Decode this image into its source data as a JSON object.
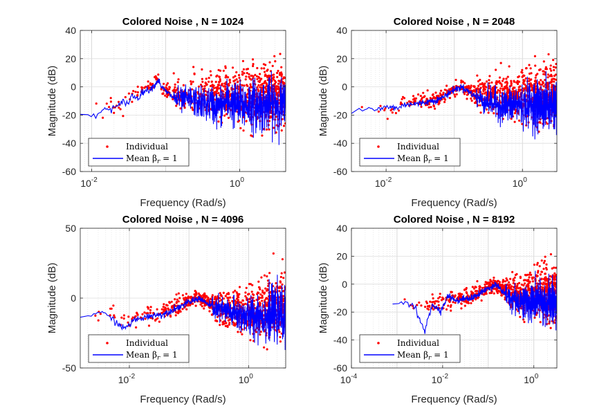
{
  "figure": {
    "background": "#ffffff"
  },
  "colors": {
    "individual": "#ff0000",
    "mean": "#0000ff",
    "grid": "#dcdcdc",
    "axis": "#262626"
  },
  "chart_data": [
    {
      "type": "scatter",
      "title": "Colored Noise , N = 1024",
      "xlabel": "Frequency (Rad/s)",
      "ylabel": "Magnitude (dB)",
      "xscale": "log",
      "xlim": [
        0.007,
        4.2
      ],
      "ylim": [
        -60,
        40
      ],
      "yticks": [
        -60,
        -40,
        -20,
        0,
        20,
        40
      ],
      "xticks": [
        {
          "mant": "10",
          "exp": "-2",
          "v": 0.01
        },
        {
          "mant": "10",
          "exp": "0",
          "v": 1
        }
      ],
      "grid": true,
      "legend": {
        "location": "bottom-left",
        "entries": [
          "Individual",
          "Mean βr = 1"
        ]
      },
      "peak_x": 0.08,
      "peak_y": 5,
      "series": [
        {
          "name": "Individual",
          "marker": "dot",
          "color": "#ff0000",
          "x": [
            0.007,
            0.0115,
            0.0153,
            0.0192,
            0.023,
            0.027,
            0.031,
            0.035,
            0.042,
            0.05,
            0.06,
            0.07,
            0.08,
            0.09,
            0.1,
            0.13,
            0.17,
            0.22,
            0.3,
            0.4,
            0.5,
            0.7,
            1.0,
            1.4,
            2.0,
            3.0,
            4.0
          ],
          "y": [
            -20,
            -20,
            -15,
            -14,
            -12,
            -10,
            -8,
            -6,
            -4,
            -2,
            0,
            3,
            5,
            0,
            -2,
            -6,
            -8,
            -6,
            -6,
            -6,
            -5,
            -6,
            -6,
            -6,
            -6,
            -6,
            -5
          ]
        },
        {
          "name": "Mean βr = 1",
          "marker": "line",
          "color": "#0000ff",
          "x": [
            0.007,
            0.0115,
            0.0153,
            0.0192,
            0.023,
            0.027,
            0.031,
            0.035,
            0.042,
            0.05,
            0.06,
            0.07,
            0.08,
            0.09,
            0.1,
            0.13,
            0.17,
            0.22,
            0.3,
            0.4,
            0.5,
            0.7,
            1.0,
            1.4,
            2.0,
            3.0,
            4.0
          ],
          "y": [
            -20,
            -20,
            -16,
            -15,
            -14,
            -10,
            -12,
            -6,
            -8,
            -3,
            -2,
            1,
            5,
            -1,
            -3,
            -8,
            -10,
            -9,
            -12,
            -12,
            -15,
            -10,
            -14,
            -12,
            -14,
            -12,
            -14
          ]
        }
      ]
    },
    {
      "type": "scatter",
      "title": "Colored Noise , N = 2048",
      "xlabel": "Frequency (Rad/s)",
      "ylabel": "Magnitude (dB)",
      "xscale": "log",
      "xlim": [
        0.0031,
        3.2
      ],
      "ylim": [
        -60,
        40
      ],
      "yticks": [
        -60,
        -40,
        -20,
        0,
        20,
        40
      ],
      "xticks": [
        {
          "mant": "10",
          "exp": "-2",
          "v": 0.01
        },
        {
          "mant": "10",
          "exp": "0",
          "v": 1
        }
      ],
      "grid": true,
      "legend": {
        "location": "bottom-left",
        "entries": [
          "Individual",
          "Mean βr = 1"
        ]
      },
      "peak_x": 0.13,
      "peak_y": 0,
      "series": [
        {
          "name": "Individual",
          "marker": "dot",
          "color": "#ff0000",
          "x": [
            0.0031,
            0.005,
            0.007,
            0.01,
            0.015,
            0.02,
            0.03,
            0.045,
            0.06,
            0.08,
            0.1,
            0.13,
            0.17,
            0.22,
            0.3,
            0.4,
            0.6,
            0.8,
            1.0,
            1.5,
            2.0,
            3.0
          ],
          "y": [
            -18,
            -16,
            -14,
            -15,
            -14,
            -12,
            -10,
            -10,
            -8,
            -4,
            -1,
            0,
            -3,
            -6,
            -6,
            -6,
            -6,
            -6,
            -6,
            -6,
            -6,
            -6
          ]
        },
        {
          "name": "Mean βr = 1",
          "marker": "line",
          "color": "#0000ff",
          "x": [
            0.0031,
            0.005,
            0.007,
            0.01,
            0.015,
            0.02,
            0.03,
            0.045,
            0.06,
            0.08,
            0.1,
            0.13,
            0.17,
            0.22,
            0.3,
            0.4,
            0.6,
            0.8,
            1.0,
            1.5,
            2.0,
            3.0
          ],
          "y": [
            -19,
            -15,
            -17,
            -14,
            -15,
            -12,
            -12,
            -10,
            -9,
            -5,
            -2,
            0,
            -4,
            -8,
            -10,
            -12,
            -14,
            -12,
            -14,
            -12,
            -14,
            -12
          ]
        }
      ]
    },
    {
      "type": "scatter",
      "title": "Colored Noise , N = 4096",
      "xlabel": "Frequency (Rad/s)",
      "ylabel": "Magnitude (dB)",
      "xscale": "log",
      "xlim": [
        0.0015,
        4.2
      ],
      "ylim": [
        -50,
        50
      ],
      "yticks": [
        -50,
        0,
        50
      ],
      "xticks": [
        {
          "mant": "10",
          "exp": "-2",
          "v": 0.01
        },
        {
          "mant": "10",
          "exp": "0",
          "v": 1
        }
      ],
      "grid": true,
      "legend": {
        "location": "bottom-left",
        "entries": [
          "Individual",
          "Mean βr = 1"
        ]
      },
      "peak_x": 0.15,
      "peak_y": 0,
      "series": [
        {
          "name": "Individual",
          "marker": "dot",
          "color": "#ff0000",
          "x": [
            0.0015,
            0.003,
            0.005,
            0.008,
            0.012,
            0.018,
            0.025,
            0.035,
            0.05,
            0.07,
            0.1,
            0.15,
            0.2,
            0.3,
            0.45,
            0.7,
            1.0,
            1.5,
            2.0,
            3.0,
            4.0
          ],
          "y": [
            -12,
            -10,
            -12,
            -16,
            -15,
            -12,
            -12,
            -10,
            -8,
            -5,
            -2,
            0,
            -3,
            -6,
            -8,
            -8,
            -8,
            -8,
            -7,
            -6,
            -5
          ]
        },
        {
          "name": "Mean βr = 1",
          "marker": "line",
          "color": "#0000ff",
          "x": [
            0.0015,
            0.003,
            0.005,
            0.008,
            0.012,
            0.018,
            0.025,
            0.035,
            0.05,
            0.07,
            0.1,
            0.15,
            0.2,
            0.3,
            0.45,
            0.7,
            1.0,
            1.5,
            2.0,
            3.0,
            4.0
          ],
          "y": [
            -14,
            -10,
            -14,
            -22,
            -16,
            -14,
            -12,
            -12,
            -9,
            -6,
            -3,
            0,
            -4,
            -8,
            -10,
            -12,
            -14,
            -12,
            -13,
            -12,
            -12
          ]
        }
      ]
    },
    {
      "type": "scatter",
      "title": "Colored Noise , N = 8192",
      "xlabel": "Frequency (Rad/s)",
      "ylabel": "Magnitude (dB)",
      "xscale": "log",
      "xlim": [
        0.0001,
        3.2
      ],
      "ylim": [
        -60,
        40
      ],
      "yticks": [
        -60,
        -40,
        -20,
        0,
        20,
        40
      ],
      "xticks": [
        {
          "mant": "10",
          "exp": "-4",
          "v": 0.0001
        },
        {
          "mant": "10",
          "exp": "-2",
          "v": 0.01
        },
        {
          "mant": "10",
          "exp": "0",
          "v": 1
        }
      ],
      "grid": true,
      "legend": {
        "location": "bottom-left",
        "entries": [
          "Individual",
          "Mean βr = 1"
        ]
      },
      "peak_x": 0.15,
      "peak_y": 0,
      "series": [
        {
          "name": "Individual",
          "marker": "dot",
          "color": "#ff0000",
          "x": [
            0.0008,
            0.0015,
            0.0025,
            0.004,
            0.006,
            0.009,
            0.013,
            0.02,
            0.03,
            0.045,
            0.07,
            0.1,
            0.15,
            0.2,
            0.3,
            0.5,
            0.8,
            1.2,
            2.0,
            3.0
          ],
          "y": [
            -14,
            -13,
            -15,
            -18,
            -14,
            -14,
            -12,
            -10,
            -10,
            -8,
            -5,
            -2,
            0,
            -3,
            -6,
            -8,
            -7,
            -7,
            -6,
            -6
          ]
        },
        {
          "name": "Mean βr = 1",
          "marker": "line",
          "color": "#0000ff",
          "x": [
            0.0008,
            0.0015,
            0.0025,
            0.004,
            0.006,
            0.009,
            0.013,
            0.02,
            0.03,
            0.045,
            0.07,
            0.1,
            0.15,
            0.2,
            0.3,
            0.5,
            0.8,
            1.2,
            2.0,
            3.0
          ],
          "y": [
            -14,
            -13,
            -16,
            -35,
            -14,
            -20,
            -8,
            -12,
            -10,
            -10,
            -6,
            -3,
            0,
            -5,
            -10,
            -12,
            -14,
            -12,
            -14,
            -12
          ]
        }
      ]
    }
  ]
}
